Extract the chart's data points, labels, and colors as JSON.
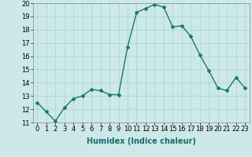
{
  "x": [
    0,
    1,
    2,
    3,
    4,
    5,
    6,
    7,
    8,
    9,
    10,
    11,
    12,
    13,
    14,
    15,
    16,
    17,
    18,
    19,
    20,
    21,
    22,
    23
  ],
  "y": [
    12.5,
    11.8,
    11.1,
    12.1,
    12.8,
    13.0,
    13.5,
    13.4,
    13.1,
    13.1,
    16.7,
    19.3,
    19.6,
    19.9,
    19.7,
    18.2,
    18.3,
    17.5,
    16.1,
    14.9,
    13.6,
    13.4,
    14.4,
    13.6
  ],
  "line_color": "#1a7a6a",
  "marker": "D",
  "marker_size": 2.0,
  "bg_color": "#cce8e8",
  "grid_color": "#aad0d0",
  "xlabel": "Humidex (Indice chaleur)",
  "xlim": [
    -0.5,
    23.5
  ],
  "ylim": [
    11,
    20
  ],
  "yticks": [
    11,
    12,
    13,
    14,
    15,
    16,
    17,
    18,
    19,
    20
  ],
  "xticks": [
    0,
    1,
    2,
    3,
    4,
    5,
    6,
    7,
    8,
    9,
    10,
    11,
    12,
    13,
    14,
    15,
    16,
    17,
    18,
    19,
    20,
    21,
    22,
    23
  ],
  "xtick_labels": [
    "0",
    "1",
    "2",
    "3",
    "4",
    "5",
    "6",
    "7",
    "8",
    "9",
    "10",
    "11",
    "12",
    "13",
    "14",
    "15",
    "16",
    "17",
    "18",
    "19",
    "20",
    "21",
    "22",
    "23"
  ],
  "xlabel_fontsize": 7,
  "tick_fontsize": 6,
  "linewidth": 1.0
}
